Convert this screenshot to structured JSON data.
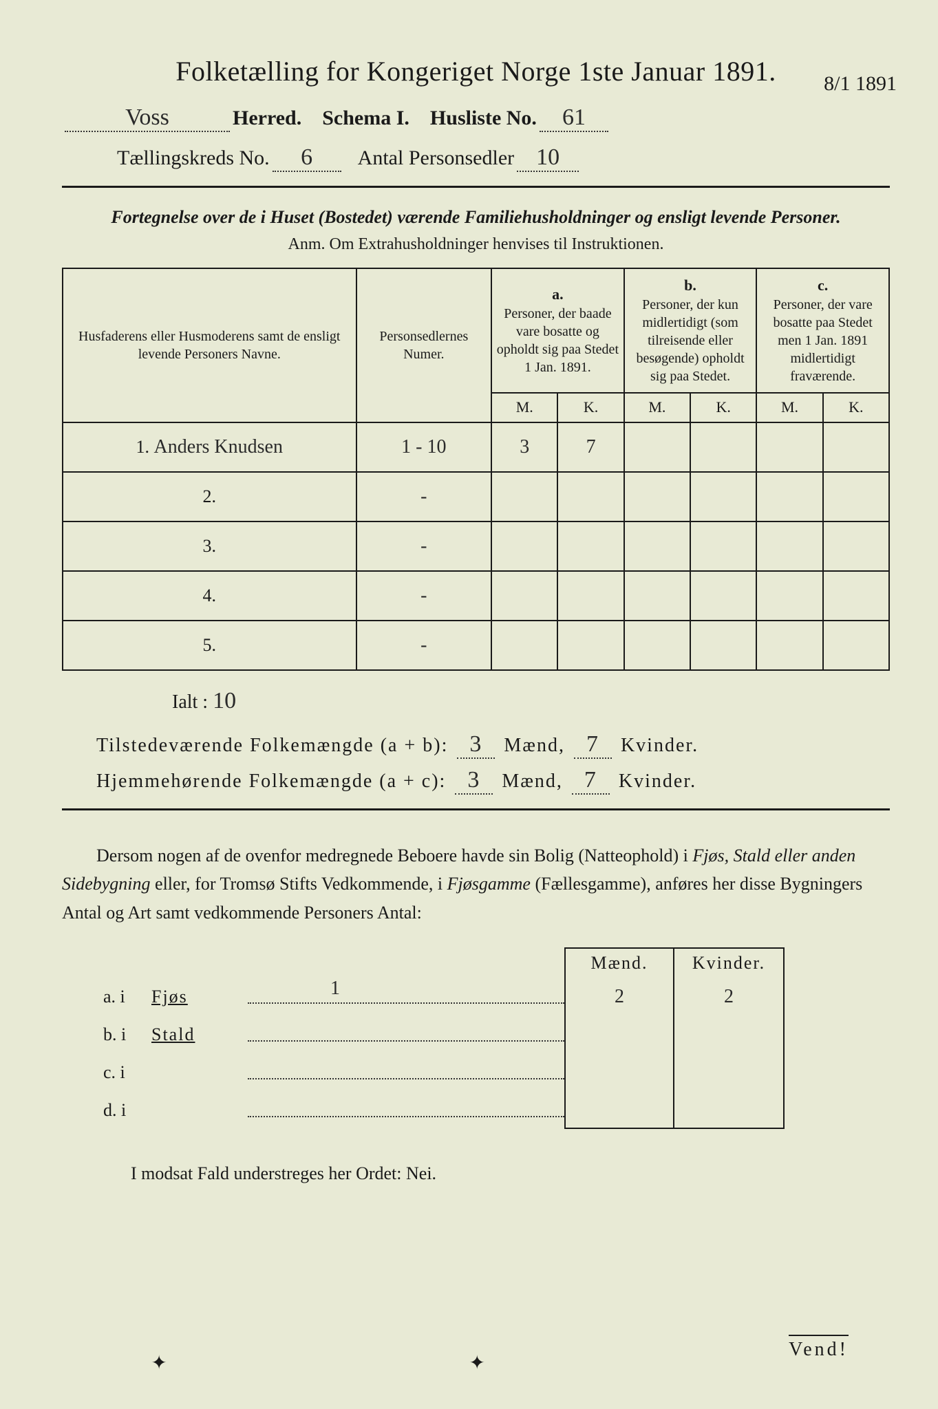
{
  "title": "Folketælling for Kongeriget Norge 1ste Januar 1891.",
  "header": {
    "herred_value": "Voss",
    "herred_label": "Herred.",
    "schema_label": "Schema I.",
    "husliste_label": "Husliste No.",
    "husliste_value": "61",
    "margin_note": "8/1 1891",
    "kreds_label": "Tællingskreds No.",
    "kreds_value": "6",
    "antal_label": "Antal Personsedler",
    "antal_value": "10"
  },
  "subtitle": "Fortegnelse over de i Huset (Bostedet) værende Familiehusholdninger og ensligt levende Personer.",
  "anm": "Anm.   Om Extrahusholdninger henvises til Instruktionen.",
  "table": {
    "col1": "Husfaderens eller Husmoderens samt de ensligt levende Personers Navne.",
    "col2": "Personsedlernes Numer.",
    "col_a_label": "a.",
    "col_a": "Personer, der baade vare bosatte og opholdt sig paa Stedet 1 Jan. 1891.",
    "col_b_label": "b.",
    "col_b": "Personer, der kun midlertidigt (som tilreisende eller besøgende) opholdt sig paa Stedet.",
    "col_c_label": "c.",
    "col_c": "Personer, der vare bosatte paa Stedet men 1 Jan. 1891 midlertidigt fraværende.",
    "m": "M.",
    "k": "K.",
    "rows": [
      {
        "num": "1.",
        "name": "Anders Knudsen",
        "sedler": "1 - 10",
        "a_m": "3",
        "a_k": "7",
        "b_m": "",
        "b_k": "",
        "c_m": "",
        "c_k": ""
      },
      {
        "num": "2.",
        "name": "",
        "sedler": "-",
        "a_m": "",
        "a_k": "",
        "b_m": "",
        "b_k": "",
        "c_m": "",
        "c_k": ""
      },
      {
        "num": "3.",
        "name": "",
        "sedler": "-",
        "a_m": "",
        "a_k": "",
        "b_m": "",
        "b_k": "",
        "c_m": "",
        "c_k": ""
      },
      {
        "num": "4.",
        "name": "",
        "sedler": "-",
        "a_m": "",
        "a_k": "",
        "b_m": "",
        "b_k": "",
        "c_m": "",
        "c_k": ""
      },
      {
        "num": "5.",
        "name": "",
        "sedler": "-",
        "a_m": "",
        "a_k": "",
        "b_m": "",
        "b_k": "",
        "c_m": "",
        "c_k": ""
      }
    ]
  },
  "ialt": {
    "label": "Ialt :",
    "value": "10"
  },
  "summary": {
    "line1_label": "Tilstedeværende Folkemængde (a + b):",
    "line1_m": "3",
    "line1_k": "7",
    "line2_label": "Hjemmehørende Folkemængde (a + c):",
    "line2_m": "3",
    "line2_k": "7",
    "maend": "Mænd,",
    "kvinder": "Kvinder."
  },
  "paragraph": {
    "text1": "Dersom nogen af de ovenfor medregnede Beboere havde sin Bolig (Natteophold) i ",
    "italic1": "Fjøs, Stald eller anden Sidebygning",
    "text2": " eller, for Tromsø Stifts Vedkommende, i ",
    "italic2": "Fjøsgamme",
    "text3": " (Fællesgamme), anføres her disse Bygningers Antal og Art samt vedkommende Personers Antal:"
  },
  "subtable": {
    "maend": "Mænd.",
    "kvinder": "Kvinder.",
    "rows": [
      {
        "label": "a.  i",
        "type": "Fjøs",
        "val": "1",
        "m": "2",
        "k": "2"
      },
      {
        "label": "b.  i",
        "type": "Stald",
        "val": "",
        "m": "",
        "k": ""
      },
      {
        "label": "c.  i",
        "type": "",
        "val": "",
        "m": "",
        "k": ""
      },
      {
        "label": "d.  i",
        "type": "",
        "val": "",
        "m": "",
        "k": ""
      }
    ]
  },
  "footer": "I modsat Fald understreges her Ordet: Nei.",
  "vend": "Vend!"
}
